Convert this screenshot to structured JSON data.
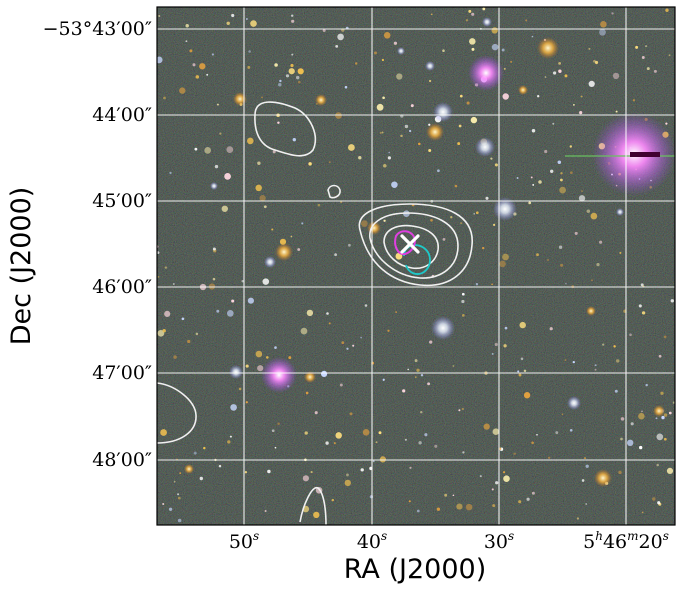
{
  "figure": {
    "x_axis_label": "RA (J2000)",
    "y_axis_label": "Dec (J2000)",
    "y_ticks": [
      {
        "label": "−53°43′00″"
      },
      {
        "label": "44′00″"
      },
      {
        "label": "45′00″"
      },
      {
        "label": "46′00″"
      },
      {
        "label": "47′00″"
      },
      {
        "label": "48′00″"
      }
    ],
    "x_ticks": [
      {
        "main": "50",
        "sup": "s"
      },
      {
        "main": "40",
        "sup": "s"
      },
      {
        "main": "30",
        "sup": "s"
      },
      {
        "main": "5",
        "sup": "h",
        "main2": "46",
        "sup2": "m",
        "main3": "20",
        "sup3": "s"
      }
    ]
  },
  "colors": {
    "sky_background": "#27312a",
    "grid": "#ffffff",
    "contours": "#ffffff",
    "cyan_contour": "#1ec8c8",
    "magenta_contour": "#e040e0",
    "cross_marker": "#ffffff"
  }
}
